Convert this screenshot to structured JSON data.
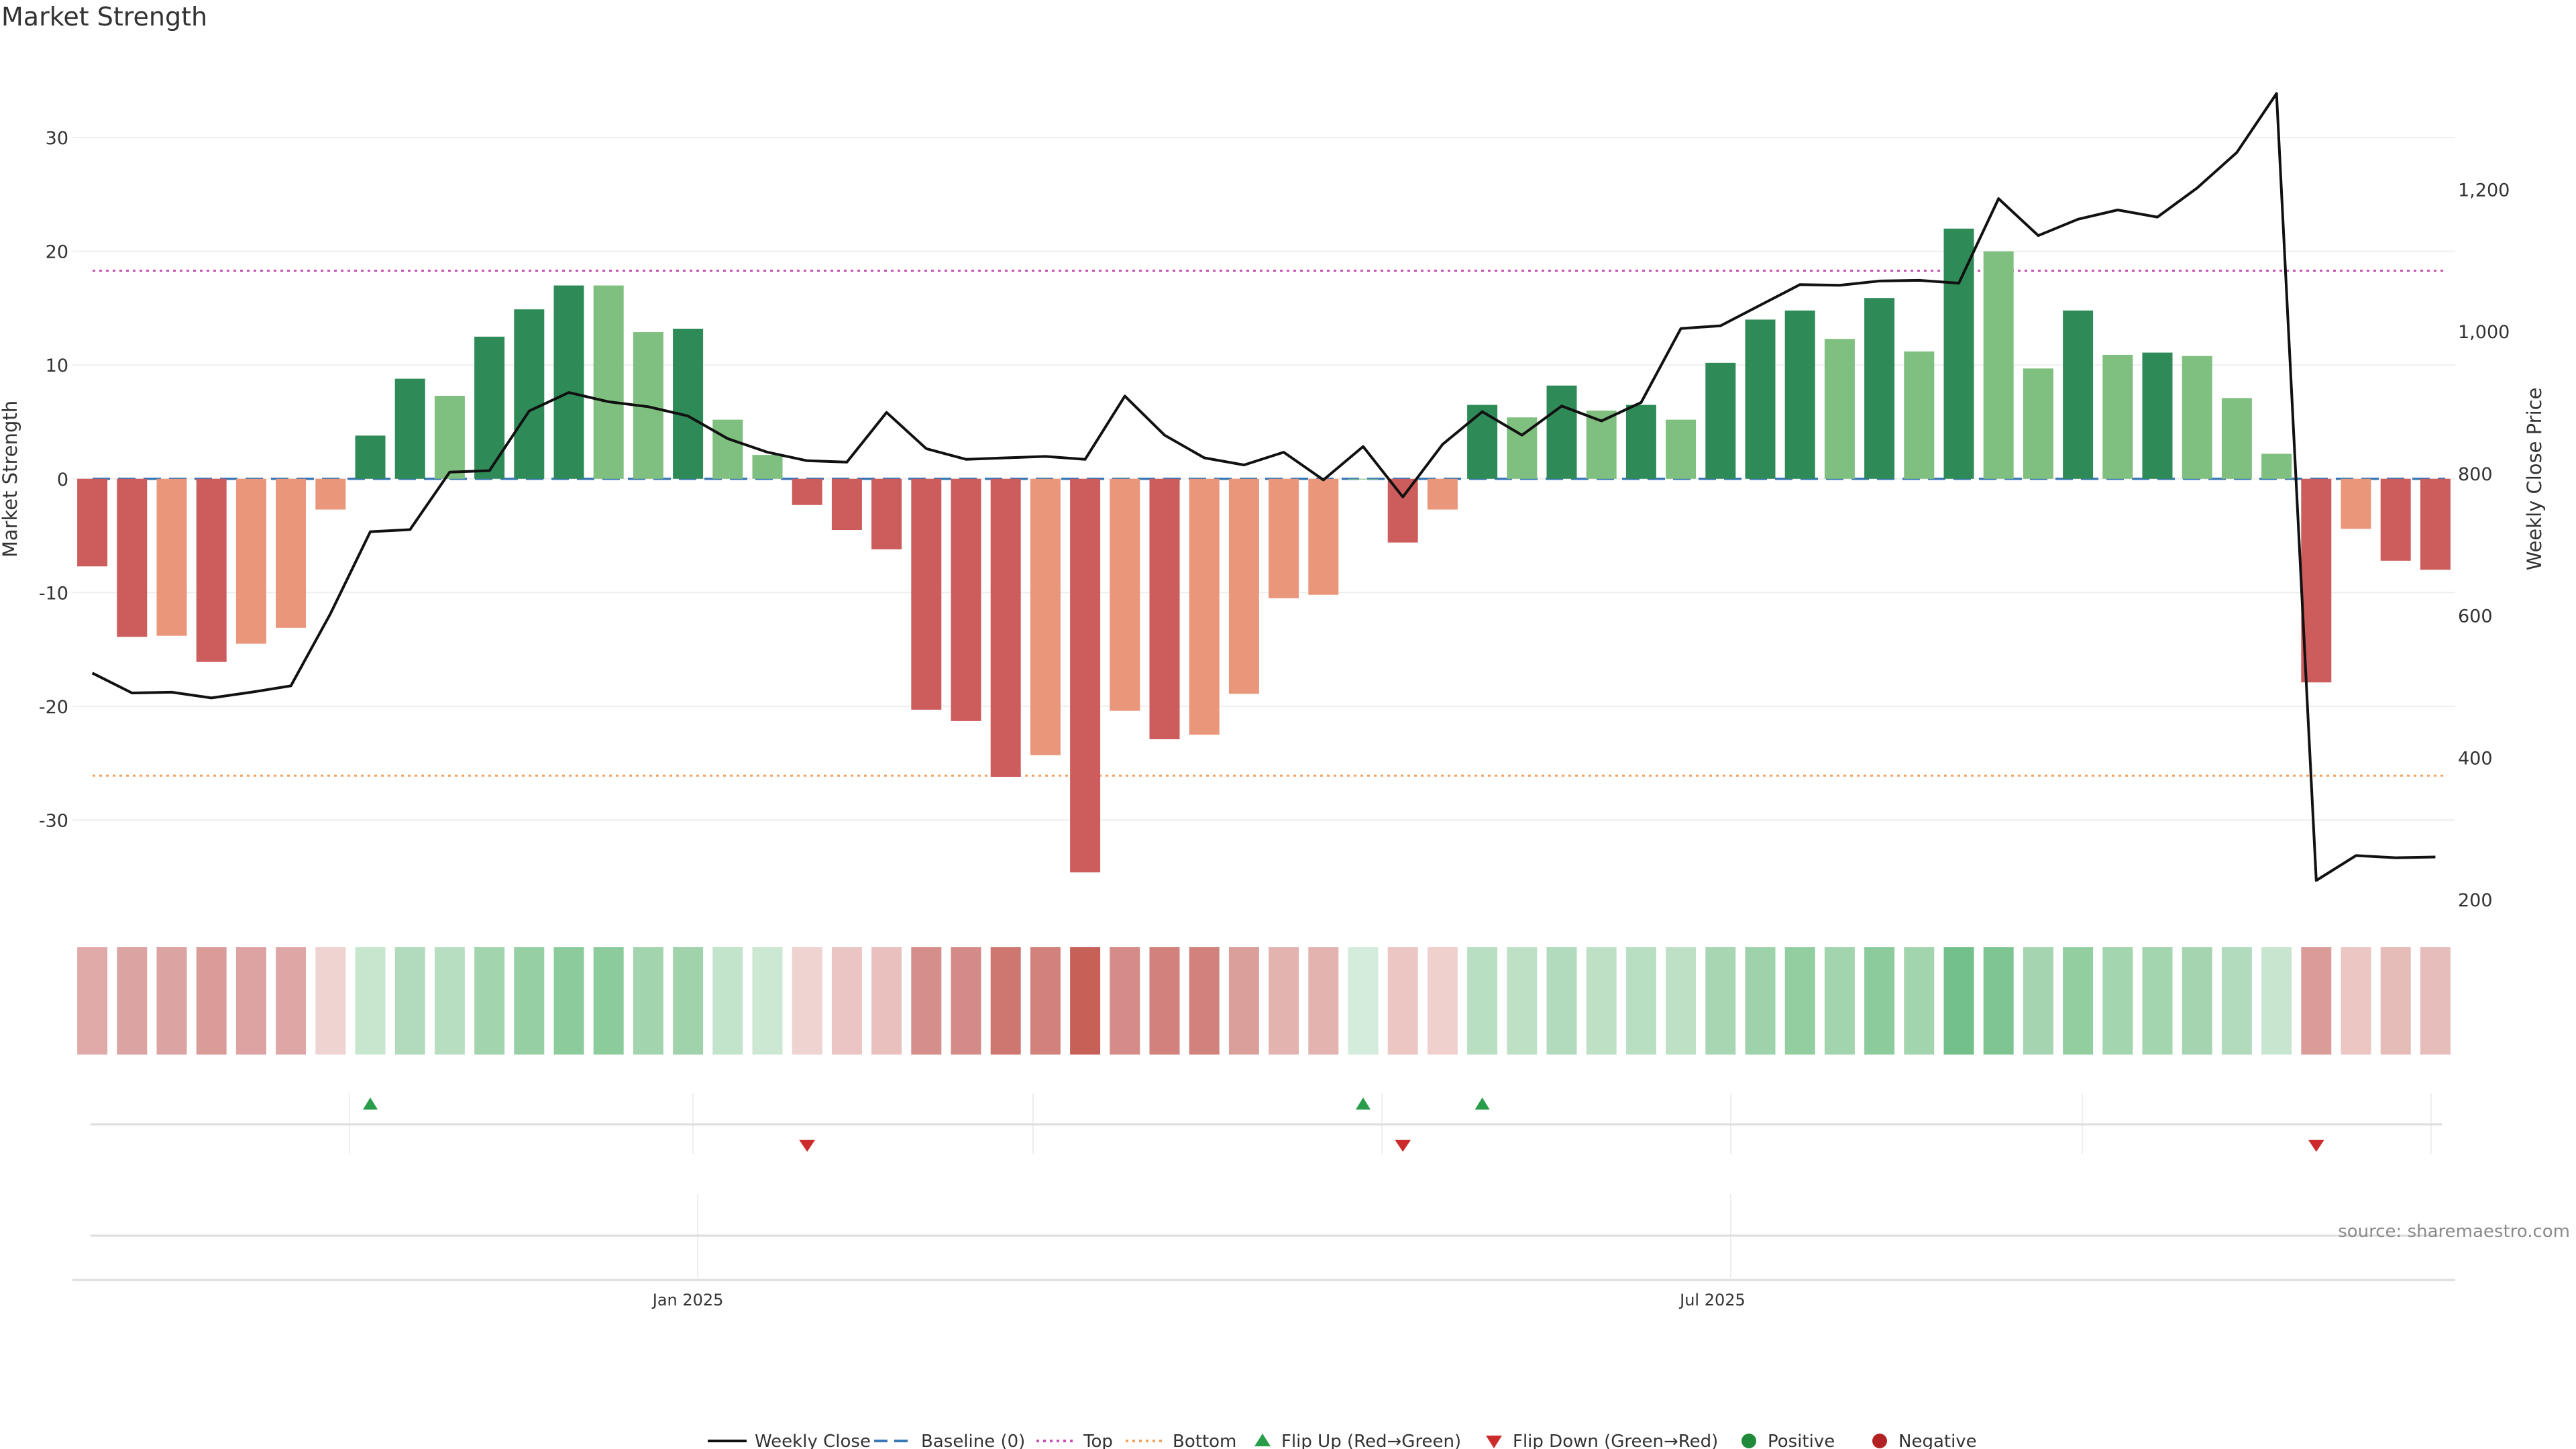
{
  "title": "Market Strength",
  "source": "source: sharemaestro.com",
  "chart_data": {
    "type": "bar",
    "title": "Market Strength",
    "ylabel_left": "Market Strength",
    "ylabel_right": "Weekly Close Price",
    "ylim_left": [
      -38,
      37.5
    ],
    "yticks_left": [
      30,
      20,
      10,
      0,
      -10,
      -20,
      -30
    ],
    "ylim_right": [
      184,
      1393
    ],
    "yticks_right": [
      1200,
      1000,
      800,
      600,
      400,
      200
    ],
    "ytick_labels_right": [
      "1,200",
      "1,000",
      "800",
      "600",
      "400",
      "200"
    ],
    "x_tick_labels": [
      {
        "label": "Jan 2025",
        "week": 15.5
      },
      {
        "label": "Jul 2025",
        "week": 41.3
      }
    ],
    "top_line": 18.3,
    "bottom_line": -26.1,
    "baseline": 0,
    "weeks": 60,
    "strength": [
      -7.7,
      -13.9,
      -13.8,
      -16.1,
      -14.5,
      -13.1,
      -2.7,
      3.8,
      8.8,
      7.3,
      12.5,
      14.9,
      17.0,
      17.0,
      12.9,
      13.2,
      5.2,
      2.1,
      -2.3,
      -4.5,
      -6.2,
      -20.3,
      -21.3,
      -26.2,
      -24.3,
      -34.6,
      -20.4,
      -22.9,
      -22.5,
      -18.9,
      -10.5,
      -10.2,
      0,
      -5.6,
      -2.7,
      6.5,
      5.4,
      8.2,
      6.0,
      6.5,
      5.2,
      10.2,
      14.0,
      14.8,
      12.3,
      15.9,
      11.2,
      22.0,
      20.0,
      9.7,
      14.8,
      10.9,
      11.1,
      10.8,
      7.1,
      2.2,
      -17.9,
      -4.4,
      -7.2,
      -8.0
    ],
    "bar_colors": [
      "#cd5c5c",
      "#cd5c5c",
      "#e9967a",
      "#cd5c5c",
      "#e9967a",
      "#e9967a",
      "#e9967a",
      "#2e8b57",
      "#2e8b57",
      "#7fbf7f",
      "#2e8b57",
      "#2e8b57",
      "#2e8b57",
      "#7fbf7f",
      "#7fbf7f",
      "#2e8b57",
      "#7fbf7f",
      "#7fbf7f",
      "#cd5c5c",
      "#cd5c5c",
      "#cd5c5c",
      "#cd5c5c",
      "#cd5c5c",
      "#cd5c5c",
      "#e9967a",
      "#cd5c5c",
      "#e9967a",
      "#cd5c5c",
      "#e9967a",
      "#e9967a",
      "#e9967a",
      "#e9967a",
      "#7fbf7f",
      "#cd5c5c",
      "#e9967a",
      "#2e8b57",
      "#7fbf7f",
      "#2e8b57",
      "#7fbf7f",
      "#2e8b57",
      "#7fbf7f",
      "#2e8b57",
      "#2e8b57",
      "#2e8b57",
      "#7fbf7f",
      "#2e8b57",
      "#7fbf7f",
      "#2e8b57",
      "#7fbf7f",
      "#7fbf7f",
      "#2e8b57",
      "#7fbf7f",
      "#2e8b57",
      "#7fbf7f",
      "#7fbf7f",
      "#7fbf7f",
      "#cd5c5c",
      "#e9967a",
      "#cd5c5c",
      "#cd5c5c"
    ],
    "heat_colors": [
      "#e0aaa9",
      "#dba3a1",
      "#dba3a1",
      "#d99c99",
      "#dca3a2",
      "#dea7a6",
      "#efd3d1",
      "#c7e6ce",
      "#b2dbbd",
      "#b8dec2",
      "#a2d4ae",
      "#97cfa4",
      "#8ccc9c",
      "#8ccc9c",
      "#a2d4ae",
      "#a0d3ac",
      "#c2e4ca",
      "#cce8d3",
      "#efd3d1",
      "#ebc5c3",
      "#e9c0bd",
      "#d68e8a",
      "#d48b87",
      "#ce7771",
      "#d2817c",
      "#c76158",
      "#d58c88",
      "#d2817c",
      "#d2827d",
      "#da9e9b",
      "#e3b3b0",
      "#e3b3b0",
      "#d4ecdb",
      "#ebc6c3",
      "#efd0cd",
      "#b9dfc3",
      "#bee1c6",
      "#b2dbbd",
      "#bee1c6",
      "#b9dfc3",
      "#bee1c6",
      "#a8d6b3",
      "#9ed2aa",
      "#92cea0",
      "#a2d4ae",
      "#8ccc9c",
      "#a2d4ae",
      "#74c08a",
      "#7ec592",
      "#a5d5b0",
      "#92cea0",
      "#a3d5ae",
      "#a3d5ae",
      "#a5d5b0",
      "#b2dbbd",
      "#c8e6cf",
      "#d99c99",
      "#ebc6c3",
      "#e6bcb9",
      "#e6bdba"
    ],
    "weekly_close": [
      519,
      491,
      492,
      484,
      492,
      501,
      603,
      718,
      721,
      802,
      804,
      888,
      914,
      901,
      894,
      881,
      849,
      830,
      818,
      816,
      886,
      835,
      820,
      822,
      824,
      820,
      909,
      854,
      822,
      812,
      830,
      791,
      838,
      767,
      841,
      887,
      854,
      895,
      874,
      900,
      1004,
      1008,
      1037,
      1066,
      1065,
      1071,
      1072,
      1068,
      1187,
      1135,
      1158,
      1171,
      1161,
      1202,
      1252,
      1335,
      227,
      262,
      259,
      260
    ],
    "flip_up_weeks": [
      7,
      32,
      35
    ],
    "flip_down_weeks": [
      18,
      33,
      56
    ],
    "legend": {
      "weekly_close": "Weekly Close",
      "baseline": "Baseline (0)",
      "top": "Top",
      "bottom": "Bottom",
      "flip_up": "Flip Up (Red→Green)",
      "flip_down": "Flip Down (Green→Red)",
      "positive": "Positive",
      "negative": "Negative"
    }
  }
}
